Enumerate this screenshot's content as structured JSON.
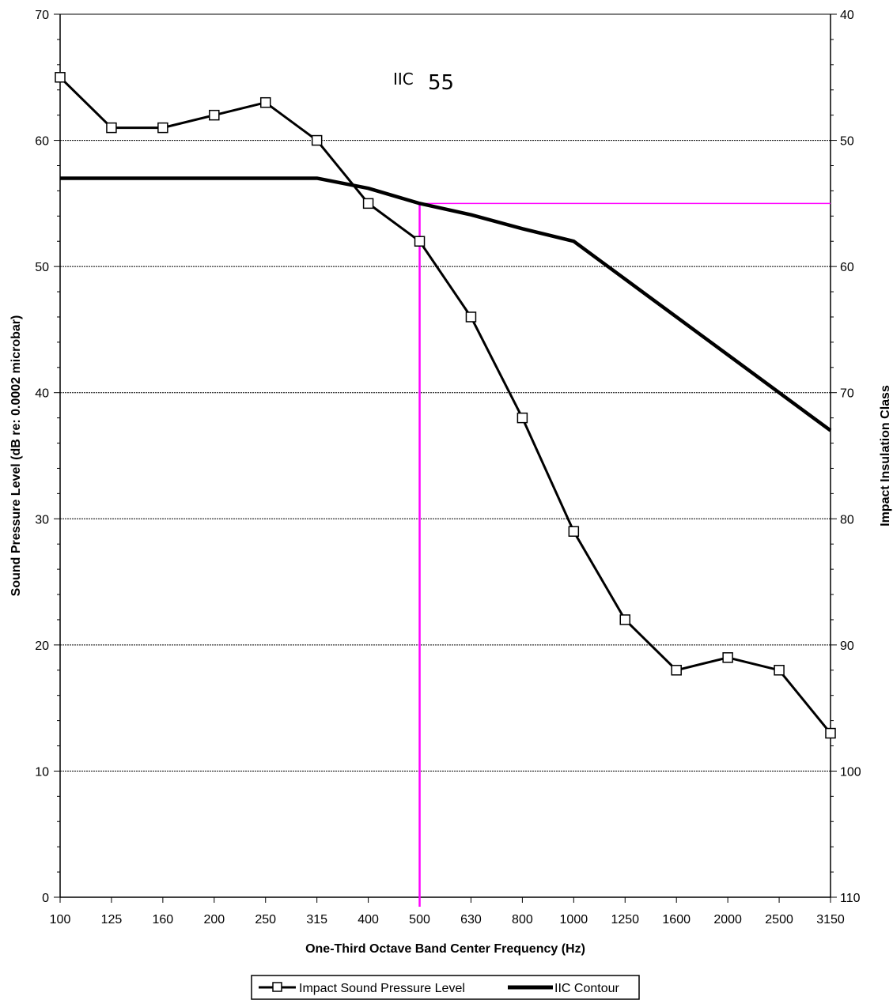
{
  "chart_data": {
    "type": "line",
    "categories": [
      "100",
      "125",
      "160",
      "200",
      "250",
      "315",
      "400",
      "500",
      "630",
      "800",
      "1000",
      "1250",
      "1600",
      "2000",
      "2500",
      "3150"
    ],
    "xlabel": "One-Third Octave Band Center Frequency (Hz)",
    "ylabel": "Sound Pressure Level (dB re: 0.0002 microbar)",
    "y2label": "Impact Insulation Class",
    "ylim": [
      0,
      70
    ],
    "y_ticks": [
      0,
      10,
      20,
      30,
      40,
      50,
      60,
      70
    ],
    "y2lim": [
      110,
      40
    ],
    "y2_ticks": [
      110,
      100,
      90,
      80,
      70,
      60,
      50,
      40
    ],
    "grid": "horizontal",
    "annotation": {
      "prefix": "IIC",
      "value": "55"
    },
    "series": [
      {
        "name": "Impact Sound Pressure Level",
        "marker": "square",
        "color": "#000000",
        "values": [
          65,
          61,
          61,
          62,
          63,
          60,
          55,
          52,
          46,
          38,
          29,
          22,
          18,
          19,
          18,
          13
        ]
      },
      {
        "name": "IIC Contour",
        "marker": "none",
        "color": "#000000",
        "values": [
          57,
          57,
          57,
          57,
          57,
          57,
          56.2,
          55,
          54.1,
          53,
          52,
          49,
          46,
          43,
          40,
          37
        ]
      }
    ],
    "reference_lines": {
      "color": "#ff00ff",
      "horizontal_y": 55,
      "vertical_x": "500"
    },
    "legend_position": "bottom-center"
  }
}
